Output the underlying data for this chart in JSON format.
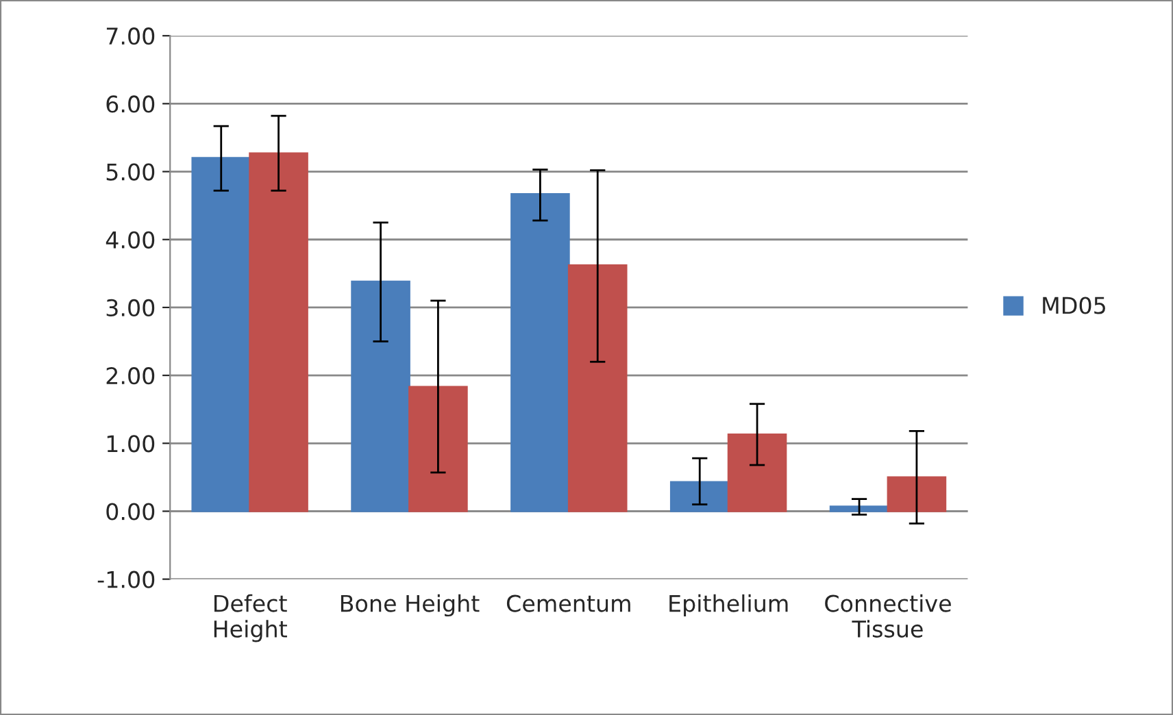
{
  "chart_data": {
    "type": "bar",
    "categories": [
      "Defect\nHeight",
      "Bone Height",
      "Cementum",
      "Epithelium",
      "Connective\nTissue"
    ],
    "series": [
      {
        "name": "MD05",
        "color": "#4a7ebb",
        "values": [
          5.2,
          3.38,
          4.67,
          0.43,
          0.07
        ],
        "errors": [
          [
            4.72,
            5.67
          ],
          [
            2.5,
            4.25
          ],
          [
            4.28,
            5.03
          ],
          [
            0.1,
            0.78
          ],
          [
            -0.05,
            0.18
          ]
        ]
      },
      {
        "color": "#c0504d",
        "values": [
          5.27,
          1.83,
          3.62,
          1.13,
          0.5
        ],
        "errors": [
          [
            4.72,
            5.82
          ],
          [
            0.57,
            3.1
          ],
          [
            2.2,
            5.02
          ],
          [
            0.68,
            1.58
          ],
          [
            -0.18,
            1.18
          ]
        ]
      }
    ],
    "ylim": [
      -1,
      7
    ],
    "yticks": [
      {
        "value": -1,
        "label": "-1.00"
      },
      {
        "value": 0,
        "label": "0.00"
      },
      {
        "value": 1,
        "label": "1.00"
      },
      {
        "value": 2,
        "label": "2.00"
      },
      {
        "value": 3,
        "label": "3.00"
      },
      {
        "value": 4,
        "label": "4.00"
      },
      {
        "value": 5,
        "label": "5.00"
      },
      {
        "value": 6,
        "label": "6.00"
      },
      {
        "value": 7,
        "label": "7.00"
      }
    ],
    "grid": "y",
    "legend": "right"
  }
}
